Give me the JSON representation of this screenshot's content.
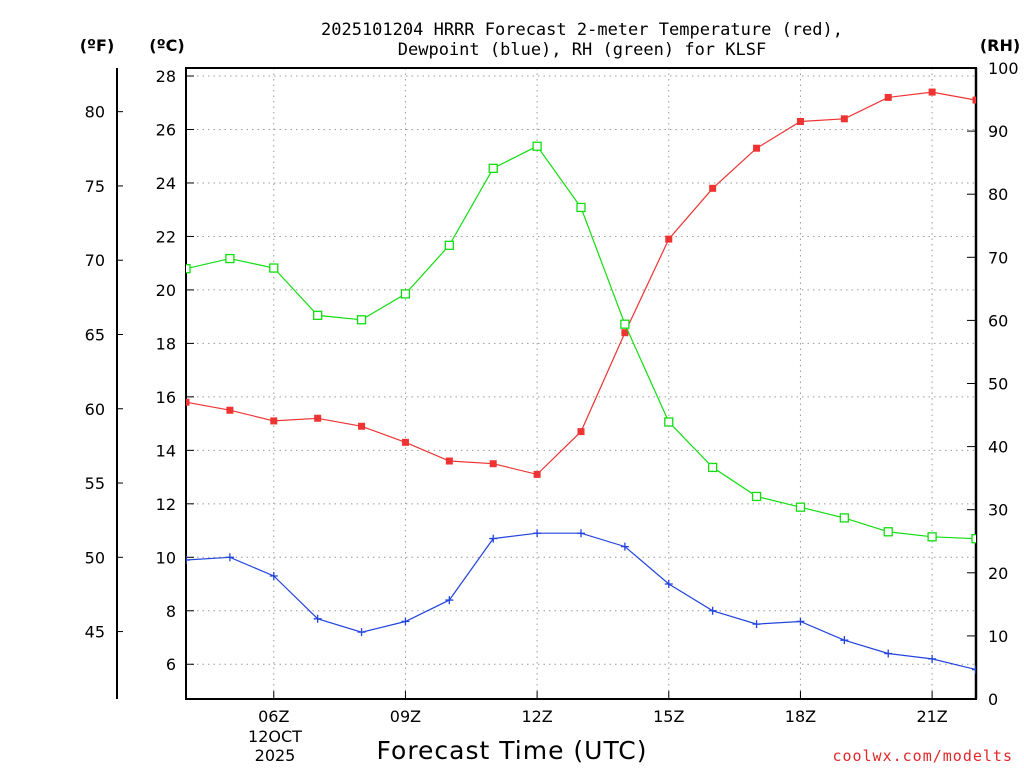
{
  "chart_data": {
    "type": "line",
    "title_line1": "2025101204 HRRR Forecast 2-meter Temperature (red),",
    "title_line2": "Dewpoint (blue), RH (green) for KLSF",
    "unit_f": "(ºF)",
    "unit_c": "(ºC)",
    "unit_rh": "(RH)",
    "xlabel": "Forecast Time (UTC)",
    "credit": "coolwx.com/modelts",
    "date_line1": "12OCT",
    "date_line2": "2025",
    "x_ticks": [
      {
        "hour": 6,
        "label": "06Z"
      },
      {
        "hour": 9,
        "label": "09Z"
      },
      {
        "hour": 12,
        "label": "12Z"
      },
      {
        "hour": 15,
        "label": "15Z"
      },
      {
        "hour": 18,
        "label": "18Z"
      },
      {
        "hour": 21,
        "label": "21Z"
      }
    ],
    "xlim": [
      4,
      22.0
    ],
    "c_ylim": [
      4.7,
      28.3
    ],
    "c_ticks": [
      "6",
      "8",
      "10",
      "12",
      "14",
      "16",
      "18",
      "20",
      "22",
      "24",
      "26",
      "28"
    ],
    "f_ticks": [
      "45",
      "50",
      "55",
      "60",
      "65",
      "70",
      "75",
      "80"
    ],
    "rh_ylim": [
      0,
      100
    ],
    "rh_ticks": [
      "0",
      "10",
      "20",
      "30",
      "40",
      "50",
      "60",
      "70",
      "80",
      "90",
      "100"
    ],
    "colors": {
      "temperature": "#ee3333",
      "dewpoint": "#2244dd",
      "rh": "#11dd11"
    },
    "x": [
      4,
      5,
      6,
      7,
      8,
      9,
      10,
      11,
      12,
      13,
      14,
      15,
      16,
      17,
      18,
      19,
      20,
      21,
      22
    ],
    "series": [
      {
        "name": "Temperature (°C)",
        "axis": "c",
        "marker": "filled-square",
        "values": [
          15.8,
          15.5,
          15.1,
          15.2,
          14.9,
          14.3,
          13.6,
          13.5,
          13.1,
          14.7,
          18.4,
          21.9,
          23.8,
          25.3,
          26.3,
          26.4,
          27.2,
          27.4,
          27.1
        ]
      },
      {
        "name": "Dewpoint (°C)",
        "axis": "c",
        "marker": "plus",
        "values": [
          9.9,
          10.0,
          9.3,
          7.7,
          7.2,
          7.6,
          8.4,
          10.7,
          10.9,
          10.9,
          10.4,
          9.0,
          8.0,
          7.5,
          7.6,
          6.9,
          6.4,
          6.2,
          5.8
        ]
      },
      {
        "name": "Relative Humidity (%)",
        "axis": "rh",
        "marker": "open-square",
        "values": [
          68.2,
          69.8,
          68.3,
          60.8,
          60.1,
          64.2,
          71.9,
          84.1,
          87.6,
          77.9,
          59.4,
          43.9,
          36.7,
          32.1,
          30.4,
          28.7,
          26.5,
          25.7,
          25.4
        ]
      }
    ]
  }
}
